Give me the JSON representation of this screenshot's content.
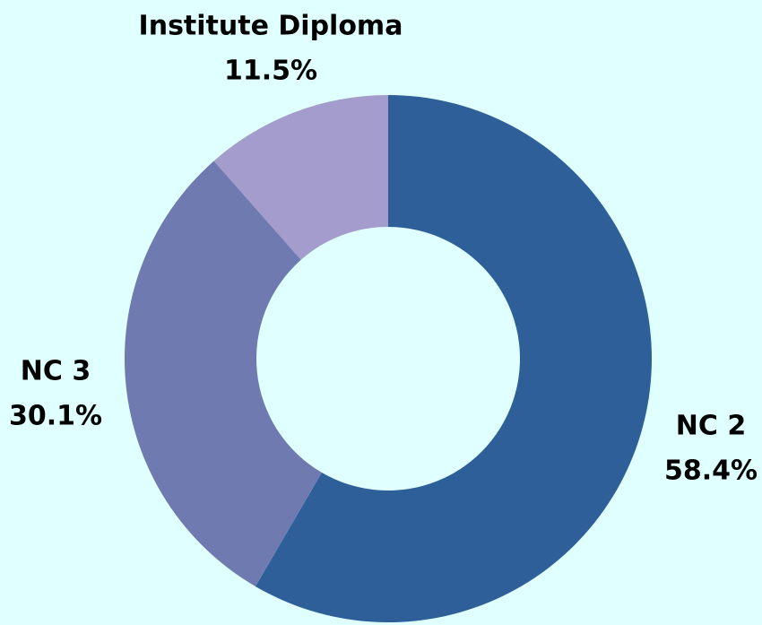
{
  "chart_data": {
    "type": "donut",
    "categories": [
      "NC 2",
      "NC 3",
      "Institute Diploma"
    ],
    "values": [
      58.4,
      30.1,
      11.5
    ],
    "value_labels": [
      "58.4%",
      "30.1%",
      "11.5%"
    ],
    "colors": [
      "#2e5f98",
      "#6f7bb0",
      "#a49ccc"
    ]
  }
}
